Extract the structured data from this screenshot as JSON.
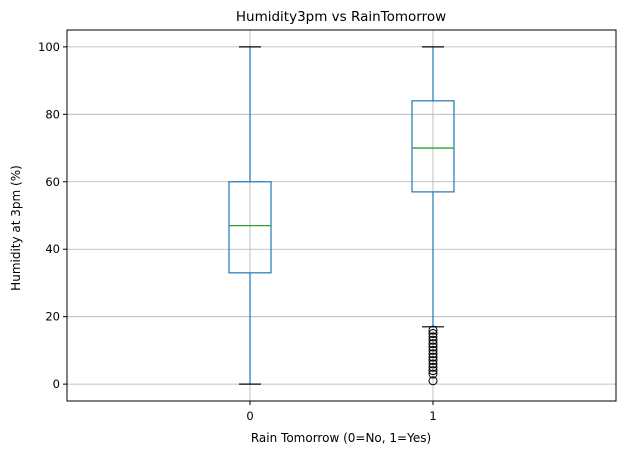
{
  "chart_data": {
    "type": "box",
    "title": "Humidity3pm vs RainTomorrow",
    "xlabel": "Rain Tomorrow (0=No, 1=Yes)",
    "ylabel": "Humidity at 3pm (%)",
    "ylim": [
      -5,
      105
    ],
    "yticks": [
      0,
      20,
      40,
      60,
      80,
      100
    ],
    "grid": true,
    "categories": [
      "0",
      "1"
    ],
    "boxes": [
      {
        "category": "0",
        "whisker_low": 0,
        "q1": 33,
        "median": 47,
        "q3": 60,
        "whisker_high": 100,
        "outliers": []
      },
      {
        "category": "1",
        "whisker_low": 17,
        "q1": 57,
        "median": 70,
        "q3": 84,
        "whisker_high": 100,
        "outliers": [
          16,
          15,
          14,
          13,
          12,
          11,
          10,
          9,
          8,
          7,
          6,
          5,
          4,
          3,
          1
        ]
      }
    ],
    "colors": {
      "box": "#1f77b4",
      "median": "#2ca02c",
      "whisker": "#1f77b4",
      "cap": "#000000",
      "grid": "#b0b0b0"
    }
  }
}
